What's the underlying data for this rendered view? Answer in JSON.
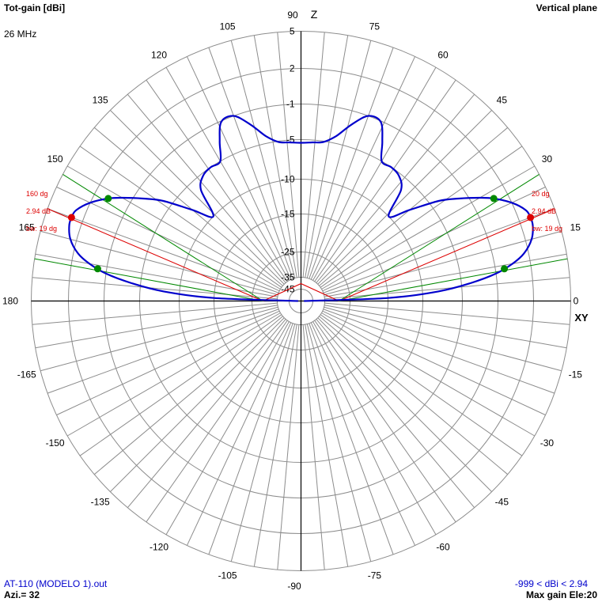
{
  "header": {
    "title": "Tot-gain [dBi]",
    "frequency": "26 MHz",
    "plane": "Vertical plane"
  },
  "footer": {
    "file_name": "AT-110 (MODELO 1).out",
    "azimuth": "Azi.= 32",
    "gain_range": "-999 < dBi < 2.94",
    "max_gain": "Max gain Ele:20"
  },
  "axes": {
    "z_label": "Z",
    "xy_label": "XY"
  },
  "colors": {
    "grid": "#8c8c8c",
    "pattern": "#0000cc",
    "beam_line": "#dd0000",
    "halfpower_line": "#008800",
    "text": "#000000"
  },
  "chart_data": {
    "type": "polar",
    "angle_unit": "degrees (elevation)",
    "angle_ticks": [
      0,
      15,
      30,
      45,
      60,
      75,
      90,
      105,
      120,
      135,
      150,
      165,
      180,
      -165,
      -150,
      -135,
      -120,
      -105,
      -90,
      -75,
      -60,
      -45,
      -30,
      -15
    ],
    "radial_labels": [
      "5",
      "2",
      "-1",
      "-5",
      "-10",
      "-15",
      "-25",
      "-35",
      "-45"
    ],
    "gain_range_dbi": [
      -999,
      2.94
    ],
    "max_gain_dbi": 2.94,
    "max_gain_elevation_deg": 20,
    "azimuth_deg": 32,
    "pattern": {
      "elevation_deg": [
        0,
        2,
        4,
        6,
        8,
        10,
        12,
        15,
        18,
        20,
        22,
        25,
        28,
        30,
        33,
        36,
        40,
        44,
        48,
        52,
        56,
        60,
        63,
        66,
        70,
        74,
        78,
        82,
        86,
        90
      ],
      "gain_dbi": [
        -60,
        -15,
        -8,
        -4,
        -1,
        0.5,
        1.6,
        2.5,
        2.9,
        2.94,
        2.8,
        2.0,
        0.8,
        -0.2,
        -2,
        -4,
        -7.5,
        -10,
        -6.5,
        -5.3,
        -5.0,
        -5.0,
        -3.0,
        -1.1,
        -1.0,
        -2.5,
        -4.2,
        -5.1,
        -5.3,
        -5.4
      ]
    },
    "markers": {
      "right": {
        "angle": "20 dg",
        "gain": "2.94 dB",
        "beamwidth": "bw: 19 dg",
        "elevation_deg": 20,
        "halfpower_angles_deg": [
          9,
          28
        ]
      },
      "left": {
        "angle": "160 dg",
        "gain": "2.94 dB",
        "beamwidth": "bw: 19 dg",
        "elevation_deg": 160,
        "halfpower_angles_deg": [
          152,
          171
        ]
      }
    }
  }
}
